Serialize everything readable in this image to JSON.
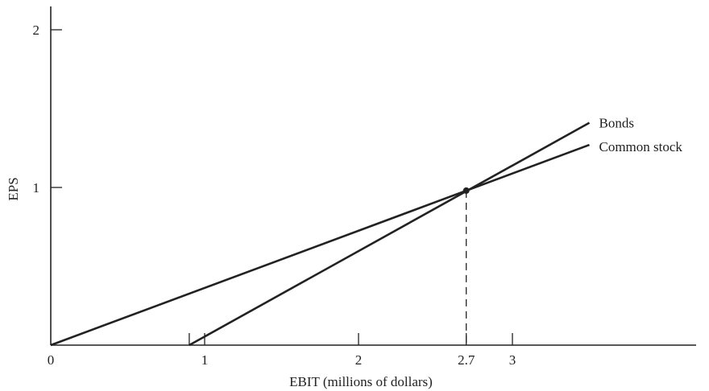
{
  "chart_data": {
    "type": "line",
    "title": "",
    "xlabel": "EBIT (millions of dollars)",
    "ylabel": "EPS",
    "xlim": [
      0,
      4.3
    ],
    "ylim": [
      0,
      2.1
    ],
    "x_ticks": [
      {
        "value": 0,
        "label": "0"
      },
      {
        "value": 1,
        "label": "1"
      },
      {
        "value": 2,
        "label": "2"
      },
      {
        "value": 2.7,
        "label": "2.7"
      },
      {
        "value": 3,
        "label": "3"
      }
    ],
    "x_unlabeled_ticks": [
      0.9
    ],
    "y_ticks": [
      {
        "value": 1,
        "label": "1"
      },
      {
        "value": 2,
        "label": "2"
      }
    ],
    "series": [
      {
        "name": "Bonds",
        "x": [
          0.9,
          3.5
        ],
        "y": [
          0,
          1.41
        ]
      },
      {
        "name": "Common stock",
        "x": [
          0,
          3.5
        ],
        "y": [
          0,
          1.27
        ]
      }
    ],
    "break_even": {
      "x": 2.7,
      "y": 0.98
    },
    "grid": false,
    "colors": {
      "line": "#222222",
      "dashed": "#222222"
    }
  }
}
